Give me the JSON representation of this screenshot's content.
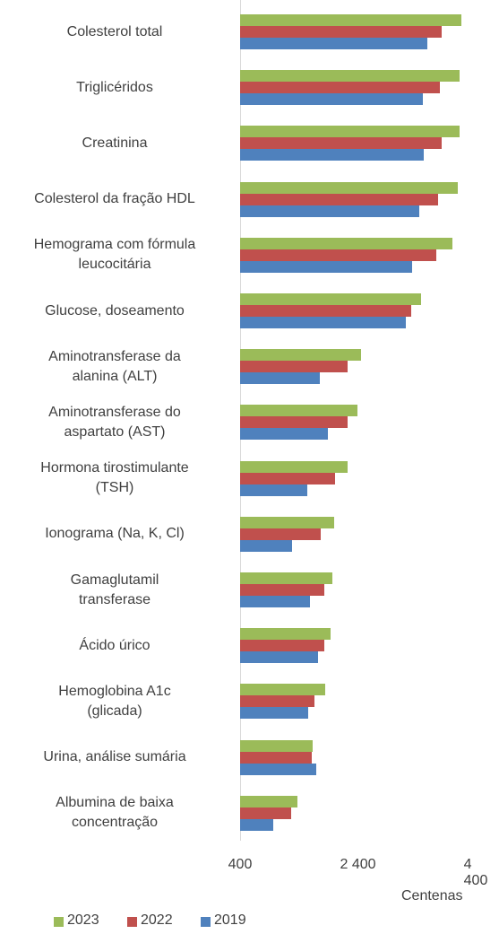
{
  "chart_data": {
    "type": "bar",
    "orientation": "horizontal",
    "categories": [
      "Colesterol total",
      "Triglicéridos",
      "Creatinina",
      "Colesterol da fração HDL",
      "Hemograma com fórmula\nleucocitária",
      "Glucose, doseamento",
      "Aminotransferase da\nalanina (ALT)",
      "Aminotransferase do\naspartato (AST)",
      "Hormona tirostimulante\n(TSH)",
      "Ionograma (Na, K, Cl)",
      "Gamaglutamil\ntransferase",
      "Ácido úrico",
      "Hemoglobina A1c\n(glicada)",
      "Urina, análise sumária",
      "Albumina de baixa\nconcentração"
    ],
    "series": [
      {
        "name": "2023",
        "color": "#9bbb59",
        "values": [
          4160,
          4130,
          4130,
          4100,
          4000,
          3470,
          2450,
          2390,
          2230,
          2000,
          1970,
          1940,
          1850,
          1630,
          1370
        ]
      },
      {
        "name": "2022",
        "color": "#c0504d",
        "values": [
          3820,
          3790,
          3820,
          3760,
          3730,
          3300,
          2230,
          2230,
          2010,
          1770,
          1830,
          1830,
          1660,
          1620,
          1270
        ]
      },
      {
        "name": "2019",
        "color": "#4f81bd",
        "values": [
          3580,
          3500,
          3520,
          3440,
          3320,
          3210,
          1750,
          1890,
          1540,
          1280,
          1590,
          1720,
          1560,
          1690,
          960
        ]
      }
    ],
    "xlim": [
      400,
      4400
    ],
    "xticks": [
      400,
      {
        "value": 2400,
        "label": "2 400"
      },
      {
        "value": 4400,
        "label": "4 400"
      }
    ],
    "x_axis_label": "Centenas",
    "legend": "bottom"
  }
}
